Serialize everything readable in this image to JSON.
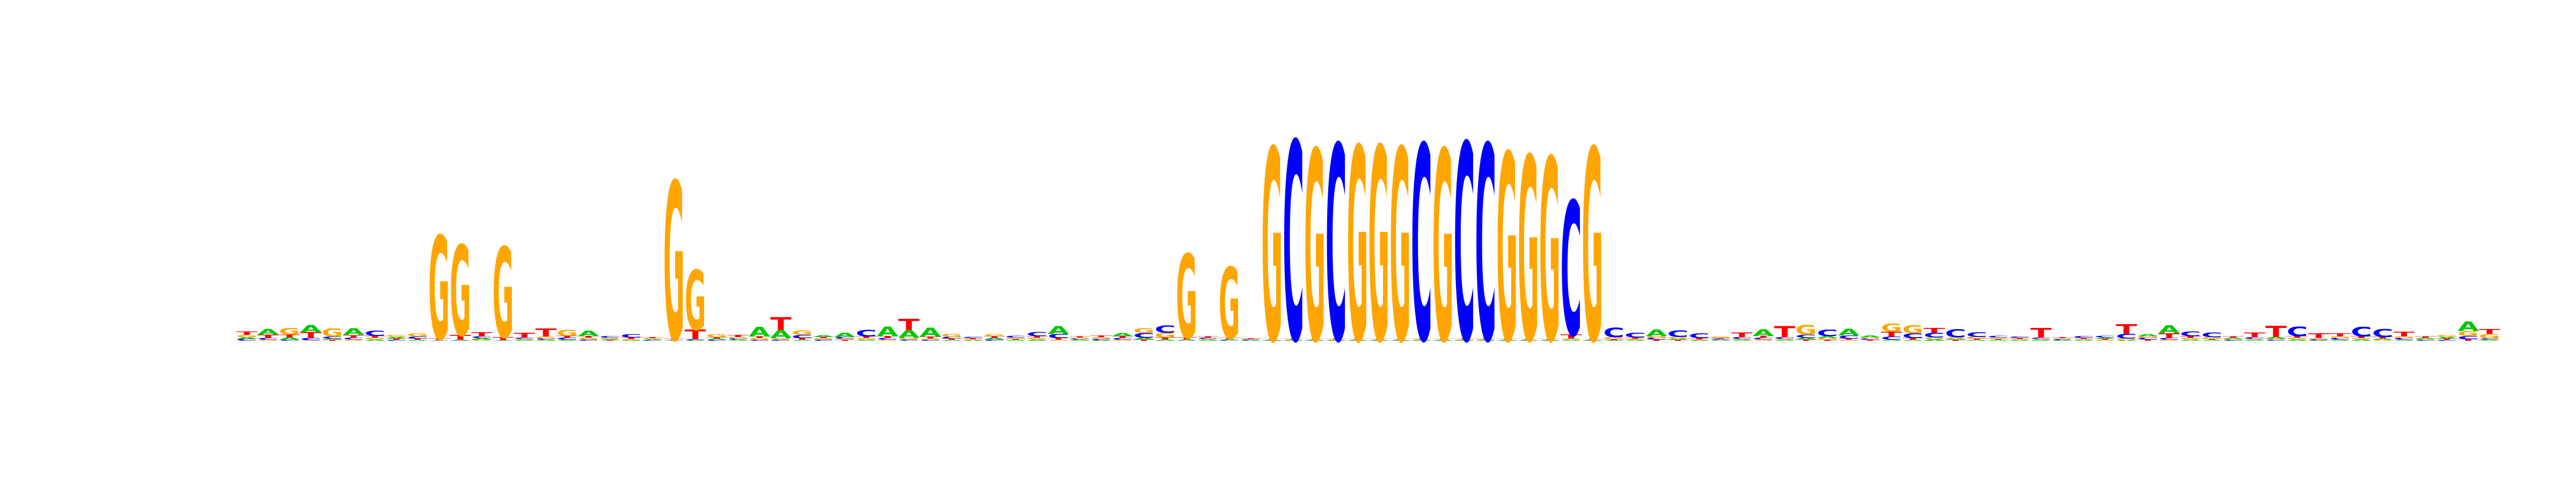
{
  "colors": {
    "A": "#00c800",
    "C": "#0000ff",
    "G": "#ffa500",
    "T": "#ff0000"
  },
  "logo": {
    "alphabet": [
      "A",
      "C",
      "G",
      "T"
    ],
    "columns": [
      [
        0.012,
        0.01,
        0.014,
        0.022
      ],
      [
        0.035,
        0.01,
        0.006,
        0.022
      ],
      [
        0.015,
        0.006,
        0.04,
        0.018
      ],
      [
        0.045,
        0.014,
        0.004,
        0.036
      ],
      [
        0.008,
        0.013,
        0.05,
        0.006
      ],
      [
        0.042,
        0.01,
        0.008,
        0.018
      ],
      [
        0.008,
        0.032,
        0.01,
        0.012
      ],
      [
        0.01,
        0.006,
        0.012,
        0.008
      ],
      [
        0.006,
        0.012,
        0.02,
        0.008
      ],
      [
        0.002,
        0.002,
        0.64,
        0.01
      ],
      [
        0.004,
        0.002,
        0.56,
        0.03
      ],
      [
        0.01,
        0.01,
        0.006,
        0.026
      ],
      [
        0.002,
        0.002,
        0.56,
        0.02
      ],
      [
        0.006,
        0.008,
        0.006,
        0.03
      ],
      [
        0.006,
        0.008,
        0.012,
        0.05
      ],
      [
        0.006,
        0.012,
        0.038,
        0.012
      ],
      [
        0.035,
        0.008,
        0.01,
        0.01
      ],
      [
        0.006,
        0.01,
        0.008,
        0.004
      ],
      [
        0.004,
        0.022,
        0.006,
        0.01
      ],
      [
        0.006,
        0.004,
        0.006,
        0.006
      ],
      [
        0.002,
        0.002,
        0.98,
        0.008
      ],
      [
        0.004,
        0.006,
        0.37,
        0.06
      ],
      [
        0.008,
        0.006,
        0.02,
        0.008
      ],
      [
        0.006,
        0.008,
        0.01,
        0.012
      ],
      [
        0.06,
        0.006,
        0.01,
        0.01
      ],
      [
        0.05,
        0.008,
        0.008,
        0.08
      ],
      [
        0.006,
        0.02,
        0.028,
        0.01
      ],
      [
        0.01,
        0.008,
        0.008,
        0.008
      ],
      [
        0.026,
        0.01,
        0.008,
        0.006
      ],
      [
        0.006,
        0.04,
        0.01,
        0.01
      ],
      [
        0.06,
        0.01,
        0.006,
        0.012
      ],
      [
        0.048,
        0.008,
        0.01,
        0.07
      ],
      [
        0.055,
        0.006,
        0.008,
        0.012
      ],
      [
        0.006,
        0.01,
        0.02,
        0.008
      ],
      [
        0.004,
        0.008,
        0.006,
        0.006
      ],
      [
        0.01,
        0.008,
        0.012,
        0.01
      ],
      [
        0.006,
        0.01,
        0.008,
        0.006
      ],
      [
        0.008,
        0.025,
        0.01,
        0.01
      ],
      [
        0.05,
        0.025,
        0.006,
        0.01
      ],
      [
        0.006,
        0.006,
        0.008,
        0.008
      ],
      [
        0.004,
        0.008,
        0.01,
        0.01
      ],
      [
        0.02,
        0.01,
        0.006,
        0.012
      ],
      [
        0.01,
        0.03,
        0.03,
        0.008
      ],
      [
        0.008,
        0.045,
        0.03,
        0.012
      ],
      [
        0.006,
        0.002,
        0.52,
        0.012
      ],
      [
        0.006,
        0.008,
        0.006,
        0.008
      ],
      [
        0.006,
        0.004,
        0.44,
        0.008
      ],
      [
        0.004,
        0.004,
        0.004,
        0.004
      ],
      [
        0.004,
        0.002,
        1.19,
        0.004
      ],
      [
        0.004,
        1.23,
        0.004,
        0.004
      ],
      [
        0.004,
        0.002,
        1.18,
        0.004
      ],
      [
        0.004,
        1.21,
        0.004,
        0.004
      ],
      [
        0.004,
        0.002,
        1.2,
        0.004
      ],
      [
        0.004,
        0.002,
        1.2,
        0.004
      ],
      [
        0.004,
        0.002,
        1.19,
        0.004
      ],
      [
        0.004,
        1.21,
        0.004,
        0.004
      ],
      [
        0.004,
        0.002,
        1.18,
        0.004
      ],
      [
        0.004,
        1.22,
        0.004,
        0.004
      ],
      [
        0.004,
        1.21,
        0.004,
        0.004
      ],
      [
        0.004,
        0.002,
        1.16,
        0.004
      ],
      [
        0.004,
        0.002,
        1.14,
        0.004
      ],
      [
        0.004,
        0.002,
        1.13,
        0.004
      ],
      [
        0.006,
        0.83,
        0.008,
        0.026
      ],
      [
        0.004,
        0.002,
        1.19,
        0.004
      ],
      [
        0.004,
        0.06,
        0.012,
        0.006
      ],
      [
        0.006,
        0.03,
        0.006,
        0.008
      ],
      [
        0.04,
        0.01,
        0.01,
        0.008
      ],
      [
        0.008,
        0.04,
        0.01,
        0.006
      ],
      [
        0.004,
        0.03,
        0.004,
        0.008
      ],
      [
        0.006,
        0.006,
        0.008,
        0.006
      ],
      [
        0.006,
        0.01,
        0.006,
        0.03
      ],
      [
        0.04,
        0.01,
        0.008,
        0.012
      ],
      [
        0.006,
        0.01,
        0.006,
        0.07
      ],
      [
        0.01,
        0.02,
        0.06,
        0.008
      ],
      [
        0.012,
        0.04,
        0.01,
        0.006
      ],
      [
        0.04,
        0.02,
        0.006,
        0.008
      ],
      [
        0.01,
        0.008,
        0.008,
        0.006
      ],
      [
        0.006,
        0.02,
        0.05,
        0.03
      ],
      [
        0.006,
        0.03,
        0.05,
        0.01
      ],
      [
        0.01,
        0.03,
        0.01,
        0.03
      ],
      [
        0.008,
        0.05,
        0.008,
        0.006
      ],
      [
        0.006,
        0.03,
        0.01,
        0.008
      ],
      [
        0.006,
        0.01,
        0.008,
        0.006
      ],
      [
        0.006,
        0.008,
        0.006,
        0.006
      ],
      [
        0.006,
        0.008,
        0.006,
        0.06
      ],
      [
        0.004,
        0.006,
        0.006,
        0.006
      ],
      [
        0.006,
        0.01,
        0.006,
        0.006
      ],
      [
        0.008,
        0.01,
        0.006,
        0.006
      ],
      [
        0.004,
        0.03,
        0.01,
        0.06
      ],
      [
        0.012,
        0.01,
        0.01,
        0.008
      ],
      [
        0.05,
        0.01,
        0.006,
        0.03
      ],
      [
        0.006,
        0.03,
        0.01,
        0.012
      ],
      [
        0.006,
        0.03,
        0.01,
        0.006
      ],
      [
        0.008,
        0.006,
        0.006,
        0.008
      ],
      [
        0.006,
        0.01,
        0.006,
        0.03
      ],
      [
        0.01,
        0.006,
        0.008,
        0.07
      ],
      [
        0.008,
        0.06,
        0.01,
        0.01
      ],
      [
        0.004,
        0.006,
        0.006,
        0.03
      ],
      [
        0.006,
        0.01,
        0.01,
        0.02
      ],
      [
        0.008,
        0.06,
        0.008,
        0.01
      ],
      [
        0.008,
        0.05,
        0.006,
        0.01
      ],
      [
        0.006,
        0.01,
        0.01,
        0.03
      ],
      [
        0.008,
        0.006,
        0.006,
        0.008
      ],
      [
        0.01,
        0.006,
        0.012,
        0.008
      ],
      [
        0.06,
        0.02,
        0.03,
        0.01
      ],
      [
        0.006,
        0.008,
        0.03,
        0.03
      ]
    ]
  }
}
